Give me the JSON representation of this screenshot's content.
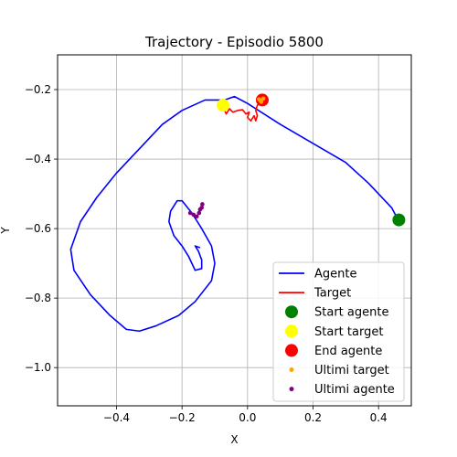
{
  "chart_data": {
    "type": "line",
    "title": "Trajectory - Episodio 5800",
    "xlabel": "X",
    "ylabel": "Y",
    "xlim": [
      -0.58,
      0.5
    ],
    "ylim": [
      -1.11,
      -0.1
    ],
    "xticks": [
      -0.4,
      -0.2,
      0.0,
      0.2,
      0.4
    ],
    "xtick_labels": [
      "−0.4",
      "−0.2",
      "0.0",
      "0.2",
      "0.4"
    ],
    "yticks": [
      -1.0,
      -0.8,
      -0.6,
      -0.4,
      -0.2
    ],
    "ytick_labels": [
      "−1.0",
      "−0.8",
      "−0.6",
      "−0.4",
      "−0.2"
    ],
    "grid": true,
    "legend_position": "lower-right",
    "series": [
      {
        "name": "Agente",
        "kind": "line",
        "color": "#0000ff",
        "points": [
          [
            0.46,
            -0.575
          ],
          [
            0.44,
            -0.54
          ],
          [
            0.37,
            -0.47
          ],
          [
            0.3,
            -0.41
          ],
          [
            0.2,
            -0.355
          ],
          [
            0.1,
            -0.3
          ],
          [
            0.0,
            -0.24
          ],
          [
            -0.04,
            -0.22
          ],
          [
            -0.07,
            -0.23
          ],
          [
            -0.13,
            -0.23
          ],
          [
            -0.2,
            -0.26
          ],
          [
            -0.26,
            -0.3
          ],
          [
            -0.33,
            -0.37
          ],
          [
            -0.4,
            -0.44
          ],
          [
            -0.46,
            -0.51
          ],
          [
            -0.51,
            -0.58
          ],
          [
            -0.54,
            -0.66
          ],
          [
            -0.53,
            -0.72
          ],
          [
            -0.48,
            -0.79
          ],
          [
            -0.42,
            -0.85
          ],
          [
            -0.37,
            -0.89
          ],
          [
            -0.33,
            -0.895
          ],
          [
            -0.28,
            -0.88
          ],
          [
            -0.21,
            -0.85
          ],
          [
            -0.16,
            -0.81
          ],
          [
            -0.11,
            -0.75
          ],
          [
            -0.1,
            -0.7
          ],
          [
            -0.11,
            -0.65
          ],
          [
            -0.14,
            -0.6
          ],
          [
            -0.17,
            -0.555
          ],
          [
            -0.2,
            -0.52
          ],
          [
            -0.215,
            -0.52
          ],
          [
            -0.235,
            -0.55
          ],
          [
            -0.24,
            -0.58
          ],
          [
            -0.225,
            -0.62
          ],
          [
            -0.2,
            -0.65
          ],
          [
            -0.18,
            -0.68
          ],
          [
            -0.16,
            -0.72
          ],
          [
            -0.14,
            -0.715
          ],
          [
            -0.14,
            -0.69
          ],
          [
            -0.15,
            -0.665
          ],
          [
            -0.16,
            -0.65
          ],
          [
            -0.145,
            -0.655
          ]
        ]
      },
      {
        "name": "Target",
        "kind": "line",
        "color": "#ff0000",
        "points": [
          [
            -0.085,
            -0.245
          ],
          [
            -0.075,
            -0.25
          ],
          [
            -0.065,
            -0.27
          ],
          [
            -0.055,
            -0.255
          ],
          [
            -0.045,
            -0.265
          ],
          [
            -0.03,
            -0.26
          ],
          [
            -0.015,
            -0.258
          ],
          [
            -0.005,
            -0.27
          ],
          [
            0.005,
            -0.265
          ],
          [
            0.0,
            -0.28
          ],
          [
            0.01,
            -0.29
          ],
          [
            0.02,
            -0.275
          ],
          [
            0.025,
            -0.29
          ],
          [
            0.03,
            -0.275
          ],
          [
            0.025,
            -0.26
          ],
          [
            0.03,
            -0.245
          ],
          [
            0.04,
            -0.235
          ],
          [
            0.045,
            -0.23
          ]
        ]
      },
      {
        "name": "Start agente",
        "kind": "marker",
        "color": "#008000",
        "points": [
          [
            0.462,
            -0.575
          ]
        ]
      },
      {
        "name": "Start target",
        "kind": "marker",
        "color": "#ffff00",
        "points": [
          [
            -0.075,
            -0.245
          ]
        ]
      },
      {
        "name": "End agente",
        "kind": "marker",
        "color": "#ff0000",
        "points": [
          [
            0.045,
            -0.23
          ]
        ]
      },
      {
        "name": "Ultimi target",
        "kind": "dots",
        "color": "#ffa500",
        "points": [
          [
            0.035,
            -0.228
          ],
          [
            0.04,
            -0.232
          ],
          [
            0.048,
            -0.226
          ],
          [
            0.042,
            -0.235
          ]
        ]
      },
      {
        "name": "Ultimi agente",
        "kind": "dots",
        "color": "#800080",
        "points": [
          [
            -0.175,
            -0.555
          ],
          [
            -0.165,
            -0.56
          ],
          [
            -0.155,
            -0.565
          ],
          [
            -0.148,
            -0.555
          ],
          [
            -0.145,
            -0.545
          ],
          [
            -0.14,
            -0.54
          ],
          [
            -0.138,
            -0.53
          ]
        ]
      }
    ]
  }
}
